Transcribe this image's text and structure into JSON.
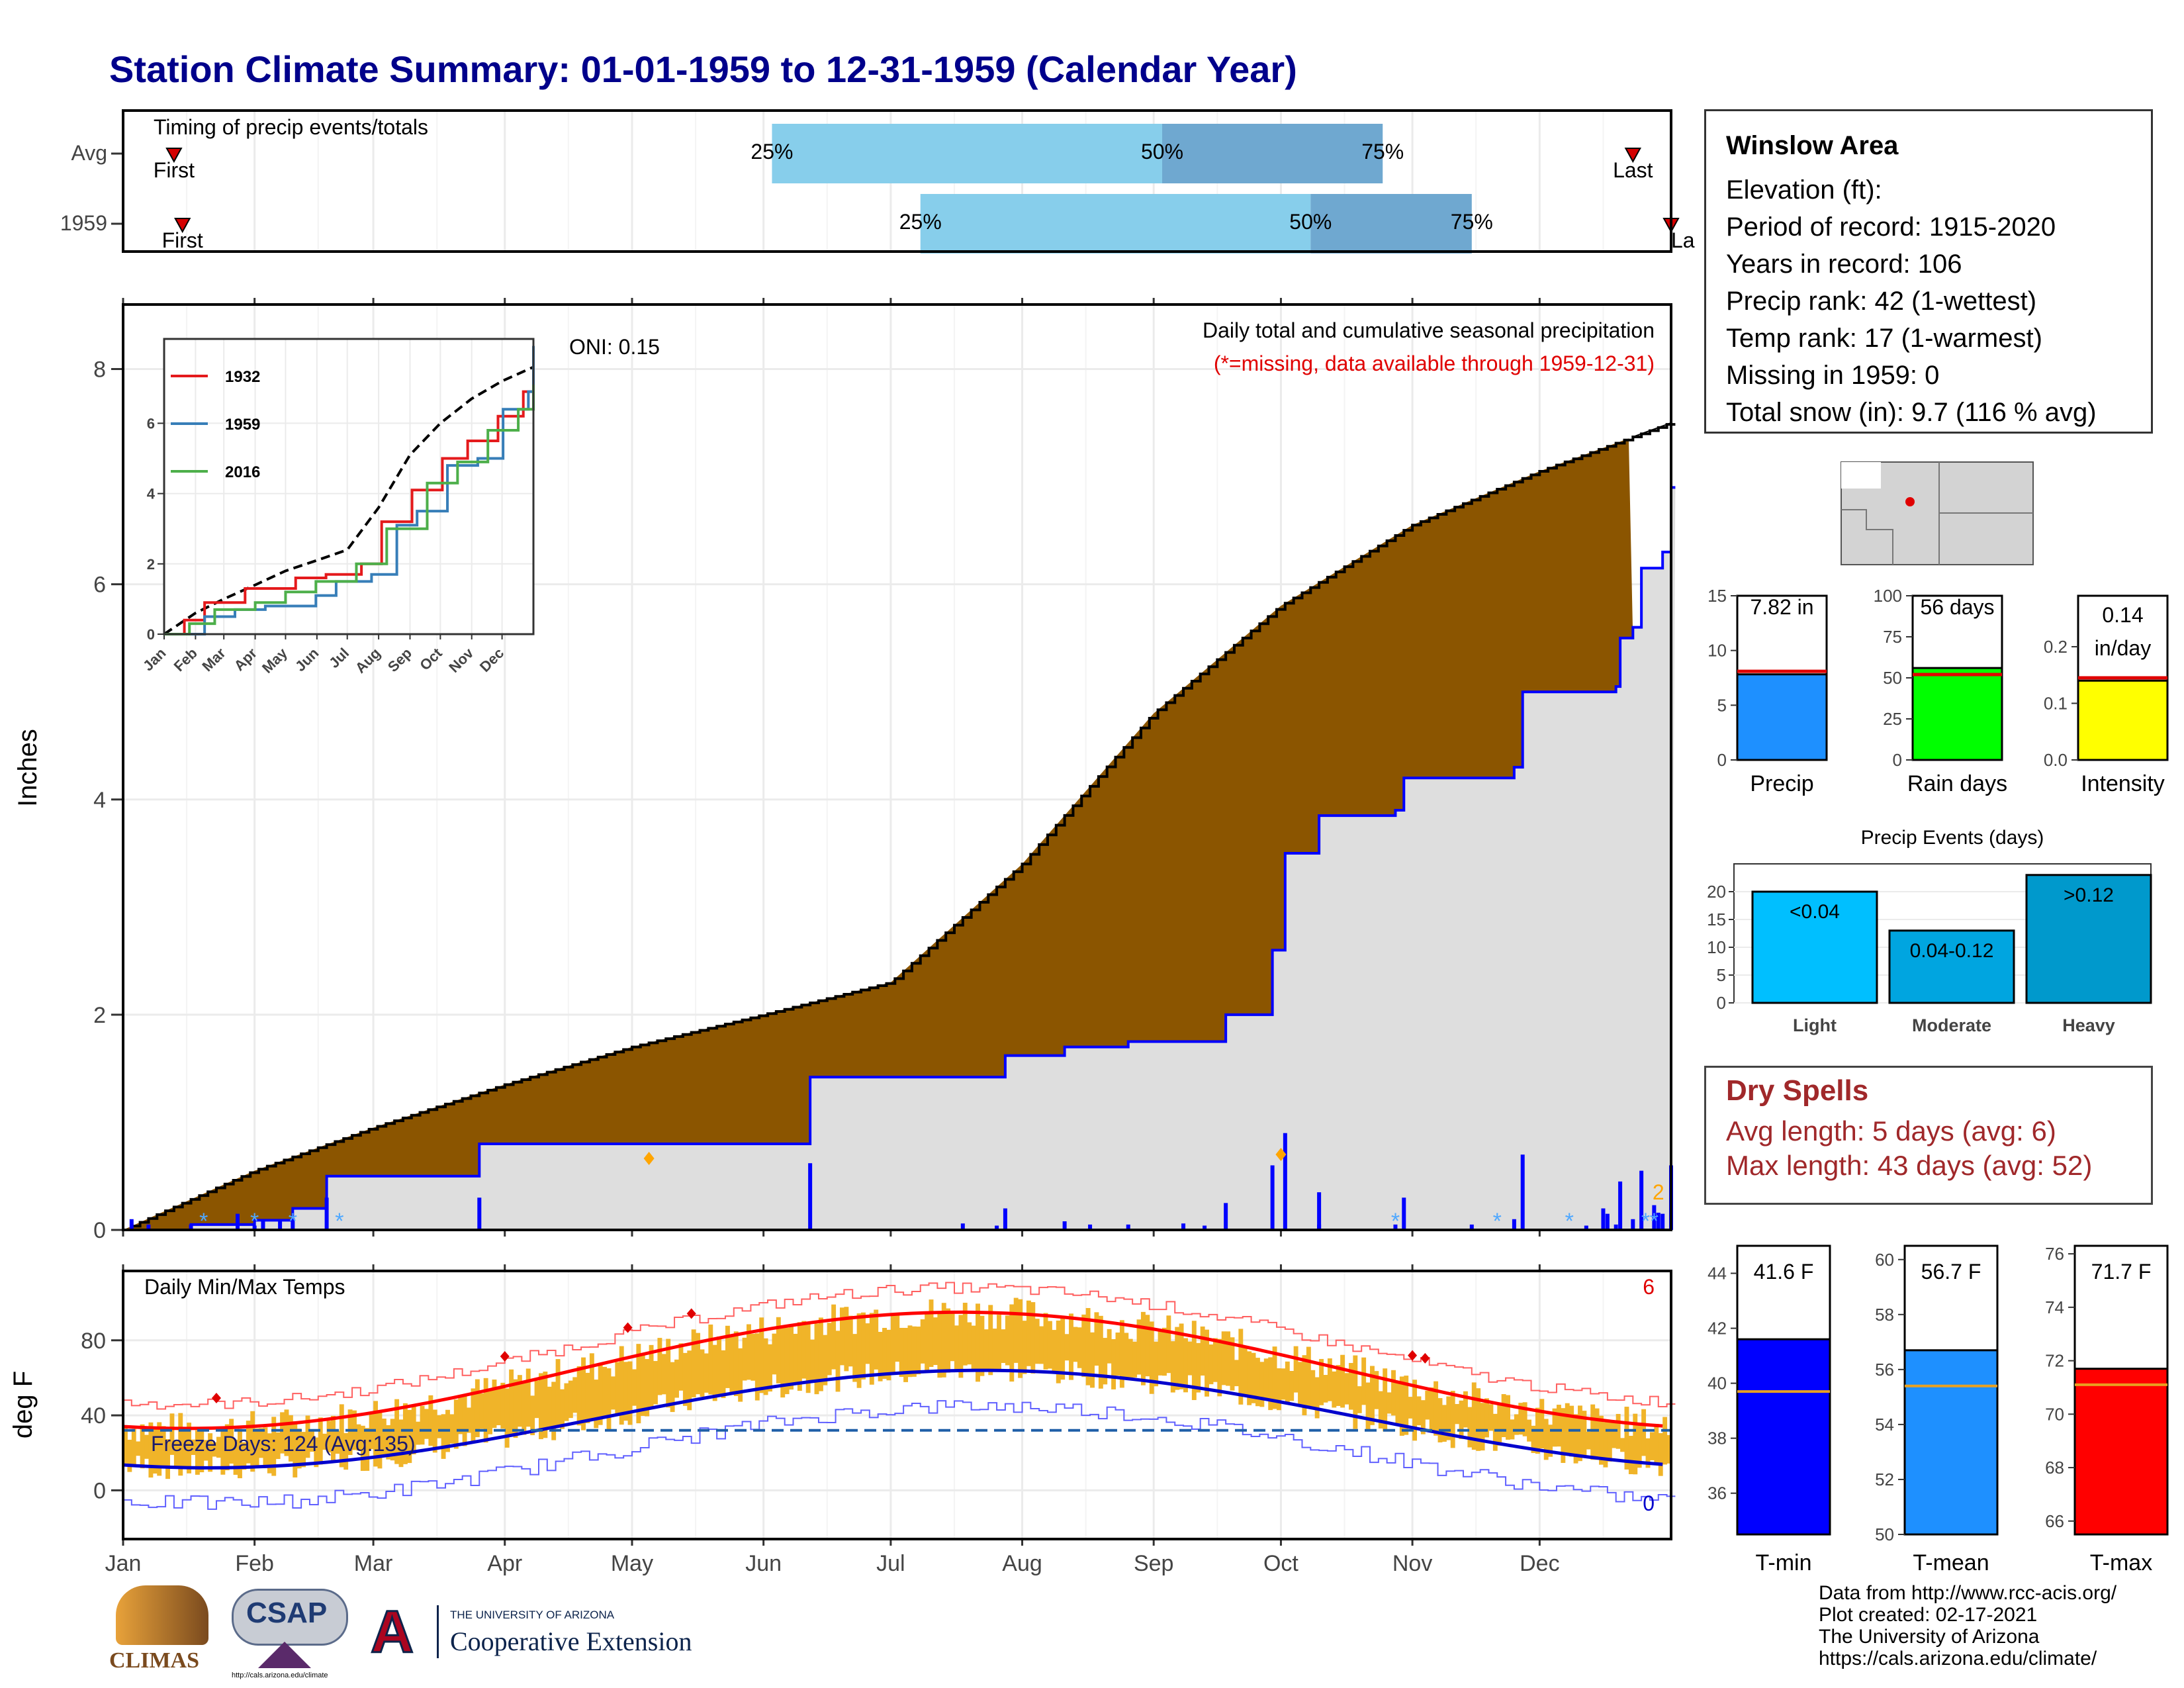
{
  "title": "Station Climate Summary: 01-01-1959 to 12-31-1959 (Calendar Year)",
  "timing": {
    "label": "Timing of precip events/totals",
    "rows": [
      {
        "name": "Avg",
        "first_day": 12,
        "p25": 153,
        "p50": 245,
        "p75": 297,
        "last_day": 356
      },
      {
        "name": "1959",
        "first_day": 14,
        "p25": 188,
        "p50": 280,
        "p75": 318,
        "last_day": 365
      }
    ],
    "first_label": "First",
    "last_label": "Last",
    "last_label_clipped": "La",
    "pct_labels": [
      "25%",
      "50%",
      "75%"
    ]
  },
  "precip_panel": {
    "ylabel": "Inches",
    "oni": "ONI: 0.15",
    "title": "Daily total and cumulative seasonal precipitation",
    "subtitle": "(*=missing, data available through 1959-12-31)",
    "yticks": [
      "0",
      "2",
      "4",
      "6",
      "8"
    ],
    "corner_count": "2"
  },
  "inset": {
    "series": [
      {
        "name": "1932",
        "color": "#e41a1c"
      },
      {
        "name": "1959",
        "color": "#377eb8"
      },
      {
        "name": "2016",
        "color": "#4daf4a"
      }
    ],
    "yticks": [
      "0",
      "2",
      "4",
      "6"
    ],
    "months": [
      "Jan",
      "Feb",
      "Mar",
      "Apr",
      "May",
      "Jun",
      "Jul",
      "Aug",
      "Sep",
      "Oct",
      "Nov",
      "Dec"
    ]
  },
  "temp_panel": {
    "ylabel": "deg F",
    "title": "Daily Min/Max Temps",
    "freeze": "Freeze Days: 124 (Avg:135)",
    "yticks": [
      "0",
      "40",
      "80"
    ],
    "record_high_count": "6",
    "record_low_count": "0"
  },
  "months": [
    "Jan",
    "Feb",
    "Mar",
    "Apr",
    "May",
    "Jun",
    "Jul",
    "Aug",
    "Sep",
    "Oct",
    "Nov",
    "Dec"
  ],
  "station": {
    "name": "Winslow Area",
    "lines": [
      "Elevation (ft):",
      "Period of record: 1915-2020",
      "Years in record: 106",
      "Precip rank: 42 (1-wettest)",
      "Temp rank: 17 (1-warmest)",
      "Missing in 1959: 0",
      "Total snow (in): 9.7 (116 % avg)"
    ]
  },
  "summary_bars": [
    {
      "label": "Precip",
      "value_label": "7.82 in",
      "value": 7.82,
      "avg": 8.1,
      "ymax": 15,
      "yticks": [
        "0",
        "5",
        "10",
        "15"
      ],
      "color": "#1e90ff"
    },
    {
      "label": "Rain days",
      "value_label": "56 days",
      "value": 56,
      "avg": 52,
      "ymax": 100,
      "yticks": [
        "0",
        "25",
        "50",
        "75",
        "100"
      ],
      "color": "#00ff00"
    },
    {
      "label": "Intensity",
      "value_label": "0.14 in/day",
      "value": 0.14,
      "avg": 0.145,
      "ymax": 0.29,
      "yticks": [
        "0.0",
        "0.1",
        "0.2"
      ],
      "color": "#ffff00"
    }
  ],
  "events": {
    "title": "Precip Events (days)",
    "yticks": [
      "0",
      "5",
      "10",
      "15",
      "20"
    ],
    "bars": [
      {
        "label": "Light",
        "inner": "<0.04",
        "value": 20,
        "color": "#00bfff"
      },
      {
        "label": "Moderate",
        "inner": "0.04-0.12",
        "value": 13,
        "color": "#00a5e0"
      },
      {
        "label": "Heavy",
        "inner": ">0.12",
        "value": 23,
        "color": "#0099cc"
      }
    ]
  },
  "dry_spells": {
    "title": "Dry Spells",
    "lines": [
      "Avg length: 5 days (avg: 6)",
      "Max length: 43 days (avg: 52)"
    ]
  },
  "temp_bars": [
    {
      "label": "T-min",
      "value_label": "41.6 F",
      "value": 41.6,
      "avg": 39.7,
      "ymin": 34.5,
      "ymax": 45,
      "yticks": [
        "36",
        "38",
        "40",
        "42",
        "44"
      ],
      "color": "#0000ff"
    },
    {
      "label": "T-mean",
      "value_label": "56.7 F",
      "value": 56.7,
      "avg": 55.4,
      "ymin": 50,
      "ymax": 60.5,
      "yticks": [
        "50",
        "52",
        "54",
        "56",
        "58",
        "60"
      ],
      "color": "#1e90ff"
    },
    {
      "label": "T-max",
      "value_label": "71.7 F",
      "value": 71.7,
      "avg": 71.1,
      "ymin": 65.5,
      "ymax": 76.3,
      "yticks": [
        "66",
        "68",
        "70",
        "72",
        "74",
        "76"
      ],
      "color": "#ff0000"
    }
  ],
  "credits": [
    "Data from http://www.rcc-acis.org/",
    "Plot created: 02-17-2021",
    "The University of Arizona",
    "https://cals.arizona.edu/climate/"
  ],
  "logos": {
    "climas": "CLIMAS",
    "csap": "CSAP",
    "csap_url": "http://cals.arizona.edu/climate",
    "ua_mark": "A",
    "ua_line1": "THE UNIVERSITY OF ARIZONA",
    "ua_line2": "Cooperative Extension"
  }
}
